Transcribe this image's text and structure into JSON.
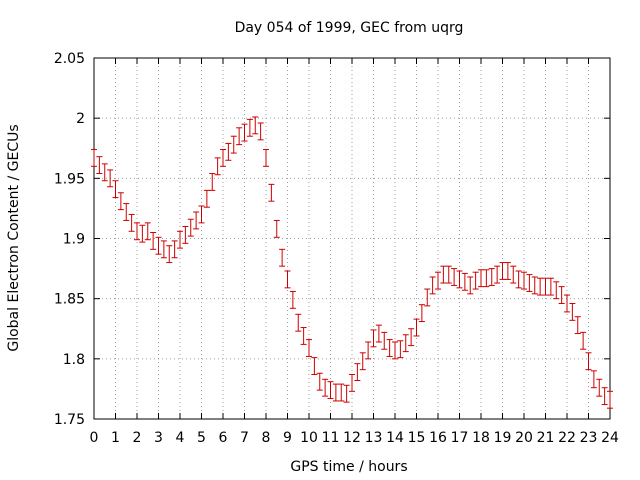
{
  "chart_data": {
    "type": "scatter",
    "title": "Day 054 of 1999, GEC from uqrg",
    "xlabel": "GPS time / hours",
    "ylabel": "Global Electron Content / GECUs",
    "xlim": [
      0,
      24
    ],
    "ylim": [
      1.75,
      2.05
    ],
    "x_ticks": [
      "0",
      "1",
      "2",
      "3",
      "4",
      "5",
      "6",
      "7",
      "8",
      "9",
      "10",
      "11",
      "12",
      "13",
      "14",
      "15",
      "16",
      "17",
      "18",
      "19",
      "20",
      "21",
      "22",
      "23",
      "24"
    ],
    "y_ticks": [
      "1.75",
      "1.8",
      "1.85",
      "1.9",
      "1.95",
      "2",
      "2.05"
    ],
    "grid": true,
    "error_bar": 0.007,
    "colors": {
      "series": "#cc0000",
      "grid": "#a0a0a0",
      "axis": "#000000"
    },
    "series": [
      {
        "name": "GEC",
        "x": [
          0,
          0.25,
          0.5,
          0.75,
          1,
          1.25,
          1.5,
          1.75,
          2,
          2.25,
          2.5,
          2.75,
          3,
          3.25,
          3.5,
          3.75,
          4,
          4.25,
          4.5,
          4.75,
          5,
          5.25,
          5.5,
          5.75,
          6,
          6.25,
          6.5,
          6.75,
          7,
          7.25,
          7.5,
          7.75,
          8,
          8.25,
          8.5,
          8.75,
          9,
          9.25,
          9.5,
          9.75,
          10,
          10.25,
          10.5,
          10.75,
          11,
          11.25,
          11.5,
          11.75,
          12,
          12.25,
          12.5,
          12.75,
          13,
          13.25,
          13.5,
          13.75,
          14,
          14.25,
          14.5,
          14.75,
          15,
          15.25,
          15.5,
          15.75,
          16,
          16.25,
          16.5,
          16.75,
          17,
          17.25,
          17.5,
          17.75,
          18,
          18.25,
          18.5,
          18.75,
          19,
          19.25,
          19.5,
          19.75,
          20,
          20.25,
          20.5,
          20.75,
          21,
          21.25,
          21.5,
          21.75,
          22,
          22.25,
          22.5,
          22.75,
          23,
          23.25,
          23.5,
          23.75,
          24
        ],
        "y": [
          1.967,
          1.961,
          1.955,
          1.95,
          1.941,
          1.931,
          1.922,
          1.913,
          1.906,
          1.904,
          1.906,
          1.898,
          1.894,
          1.891,
          1.887,
          1.891,
          1.899,
          1.903,
          1.909,
          1.915,
          1.92,
          1.933,
          1.947,
          1.96,
          1.967,
          1.972,
          1.978,
          1.985,
          1.988,
          1.992,
          1.994,
          1.989,
          1.967,
          1.938,
          1.908,
          1.884,
          1.866,
          1.849,
          1.83,
          1.819,
          1.809,
          1.794,
          1.781,
          1.776,
          1.774,
          1.772,
          1.772,
          1.771,
          1.78,
          1.789,
          1.798,
          1.807,
          1.817,
          1.821,
          1.815,
          1.809,
          1.807,
          1.808,
          1.813,
          1.818,
          1.826,
          1.838,
          1.851,
          1.861,
          1.865,
          1.87,
          1.87,
          1.868,
          1.866,
          1.864,
          1.861,
          1.865,
          1.867,
          1.867,
          1.868,
          1.87,
          1.873,
          1.873,
          1.87,
          1.866,
          1.865,
          1.863,
          1.861,
          1.86,
          1.86,
          1.86,
          1.857,
          1.853,
          1.846,
          1.839,
          1.828,
          1.815,
          1.798,
          1.783,
          1.776,
          1.769,
          1.766
        ]
      }
    ]
  }
}
